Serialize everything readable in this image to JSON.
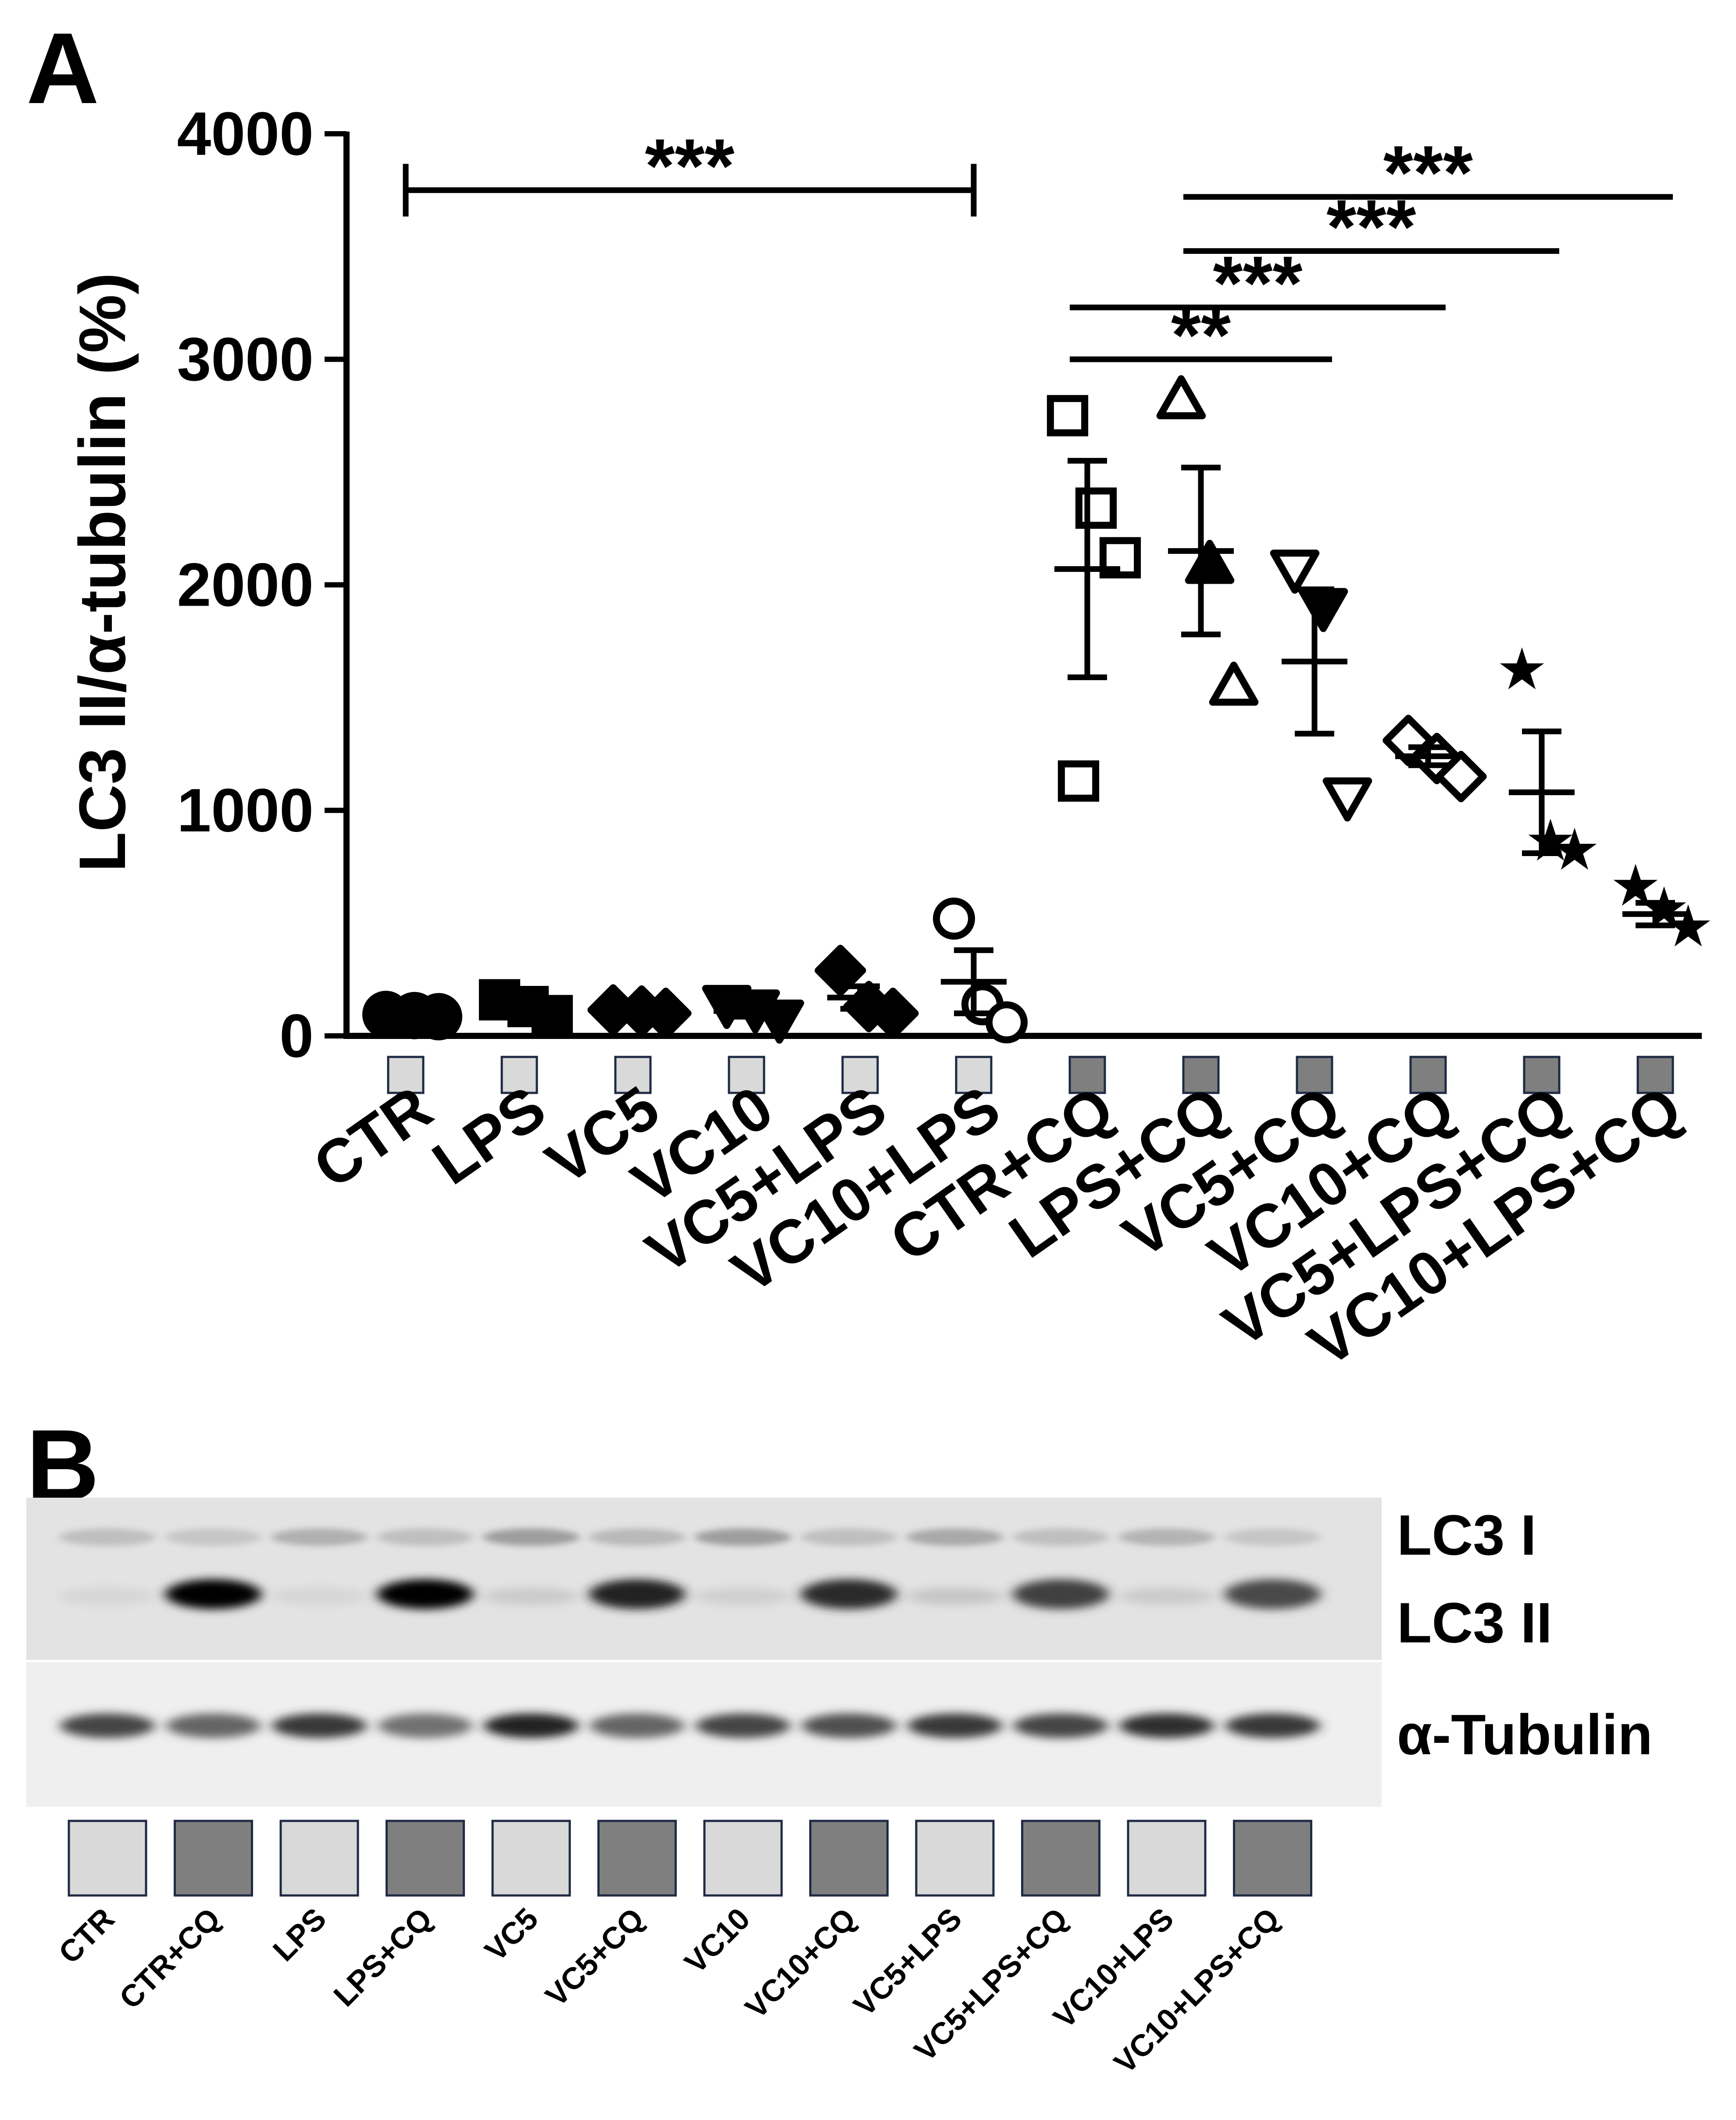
{
  "panel_a": {
    "label": "A",
    "chart_data": {
      "type": "scatter",
      "ylabel": "LC3 II/α-tubulin (%)",
      "xlabel": "",
      "ylim": [
        0,
        4000
      ],
      "yticks": [
        0,
        1000,
        2000,
        3000,
        4000
      ],
      "ytick_labels": [
        "0",
        "1000",
        "2000",
        "3000",
        "4000"
      ],
      "categories": [
        "CTR",
        "LPS",
        "VC5",
        "VC10",
        "VC5+LPS",
        "VC10+LPS",
        "CTR+CQ",
        "LPS+CQ",
        "VC5+CQ",
        "VC10+CQ",
        "VC5+LPS+CQ",
        "VC10+LPS+CQ"
      ],
      "groups": [
        {
          "name": "CTR",
          "marker": "circle-filled",
          "box": "light",
          "mean": 90,
          "sem": 8,
          "points": [
            95,
            90,
            85
          ]
        },
        {
          "name": "LPS",
          "marker": "square-filled",
          "box": "light",
          "mean": 130,
          "sem": 30,
          "points": [
            160,
            130,
            90
          ]
        },
        {
          "name": "VC5",
          "marker": "diamond-filled",
          "box": "light",
          "mean": 110,
          "sem": 10,
          "points": [
            115,
            110,
            100
          ]
        },
        {
          "name": "VC10",
          "marker": "triangle-down-filled",
          "box": "light",
          "mean": 110,
          "sem": 25,
          "points": [
            140,
            120,
            75
          ]
        },
        {
          "name": "VC5+LPS",
          "marker": "diamond-filled",
          "box": "light",
          "mean": 170,
          "sem": 50,
          "points": [
            290,
            130,
            100
          ]
        },
        {
          "name": "VC10+LPS",
          "marker": "circle-open",
          "box": "light",
          "mean": 240,
          "sem": 140,
          "points": [
            520,
            140,
            60
          ]
        },
        {
          "name": "CTR+CQ",
          "marker": "square-open",
          "box": "dark",
          "mean": 2070,
          "sem": 480,
          "points": [
            2750,
            2340,
            2120,
            1130
          ]
        },
        {
          "name": "LPS+CQ",
          "marker": "triangle-up-mixed",
          "box": "dark",
          "mean": 2150,
          "sem": 370,
          "points": [
            2820,
            2090,
            1550
          ]
        },
        {
          "name": "VC5+CQ",
          "marker": "triangle-down-mixed",
          "box": "dark",
          "mean": 1660,
          "sem": 320,
          "points": [
            2070,
            1900,
            1060
          ]
        },
        {
          "name": "VC10+CQ",
          "marker": "diamond-open",
          "box": "dark",
          "mean": 1240,
          "sem": 40,
          "points": [
            1310,
            1230,
            1150
          ]
        },
        {
          "name": "VC5+LPS+CQ",
          "marker": "star-filled",
          "box": "dark",
          "mean": 1080,
          "sem": 270,
          "points": [
            1620,
            860,
            820
          ]
        },
        {
          "name": "VC10+LPS+CQ",
          "marker": "star-filled",
          "box": "dark",
          "mean": 540,
          "sem": 50,
          "points": [
            660,
            560,
            480
          ]
        }
      ],
      "significance": [
        {
          "from": "CTR",
          "to": "VC10+LPS",
          "y": 3750,
          "label": "***",
          "caps": true
        },
        {
          "from": "CTR+CQ",
          "to": "VC5+CQ",
          "y": 3000,
          "label": "**",
          "caps": false
        },
        {
          "from": "CTR+CQ",
          "to": "VC10+CQ",
          "y": 3230,
          "label": "***",
          "caps": false
        },
        {
          "from": "LPS+CQ",
          "to": "VC5+LPS+CQ",
          "y": 3480,
          "label": "***",
          "caps": false
        },
        {
          "from": "LPS+CQ",
          "to": "VC10+LPS+CQ",
          "y": 3720,
          "label": "***",
          "caps": false
        }
      ],
      "colors": {
        "light_box": "#d9d9d9",
        "dark_box": "#7f7f7f",
        "ink": "#000000"
      }
    }
  },
  "panel_b": {
    "label": "B",
    "band_labels": [
      "LC3 I",
      "LC3 II",
      "α-Tubulin"
    ],
    "lanes": [
      {
        "name": "CTR",
        "box": "light",
        "lc3i": 0.15,
        "lc3ii": 0.05,
        "tub": 0.7
      },
      {
        "name": "CTR+CQ",
        "box": "dark",
        "lc3i": 0.12,
        "lc3ii": 1.0,
        "tub": 0.55
      },
      {
        "name": "LPS",
        "box": "light",
        "lc3i": 0.22,
        "lc3ii": 0.05,
        "tub": 0.75
      },
      {
        "name": "LPS+CQ",
        "box": "dark",
        "lc3i": 0.15,
        "lc3ii": 1.0,
        "tub": 0.5
      },
      {
        "name": "VC5",
        "box": "light",
        "lc3i": 0.3,
        "lc3ii": 0.1,
        "tub": 0.85
      },
      {
        "name": "VC5+CQ",
        "box": "dark",
        "lc3i": 0.18,
        "lc3ii": 0.85,
        "tub": 0.55
      },
      {
        "name": "VC10",
        "box": "light",
        "lc3i": 0.3,
        "lc3ii": 0.08,
        "tub": 0.7
      },
      {
        "name": "VC10+CQ",
        "box": "dark",
        "lc3i": 0.15,
        "lc3ii": 0.82,
        "tub": 0.65
      },
      {
        "name": "VC5+LPS",
        "box": "light",
        "lc3i": 0.25,
        "lc3ii": 0.12,
        "tub": 0.75
      },
      {
        "name": "VC5+LPS+CQ",
        "box": "dark",
        "lc3i": 0.15,
        "lc3ii": 0.72,
        "tub": 0.7
      },
      {
        "name": "VC10+LPS",
        "box": "light",
        "lc3i": 0.2,
        "lc3ii": 0.1,
        "tub": 0.8
      },
      {
        "name": "VC10+LPS+CQ",
        "box": "dark",
        "lc3i": 0.12,
        "lc3ii": 0.68,
        "tub": 0.75
      }
    ]
  }
}
